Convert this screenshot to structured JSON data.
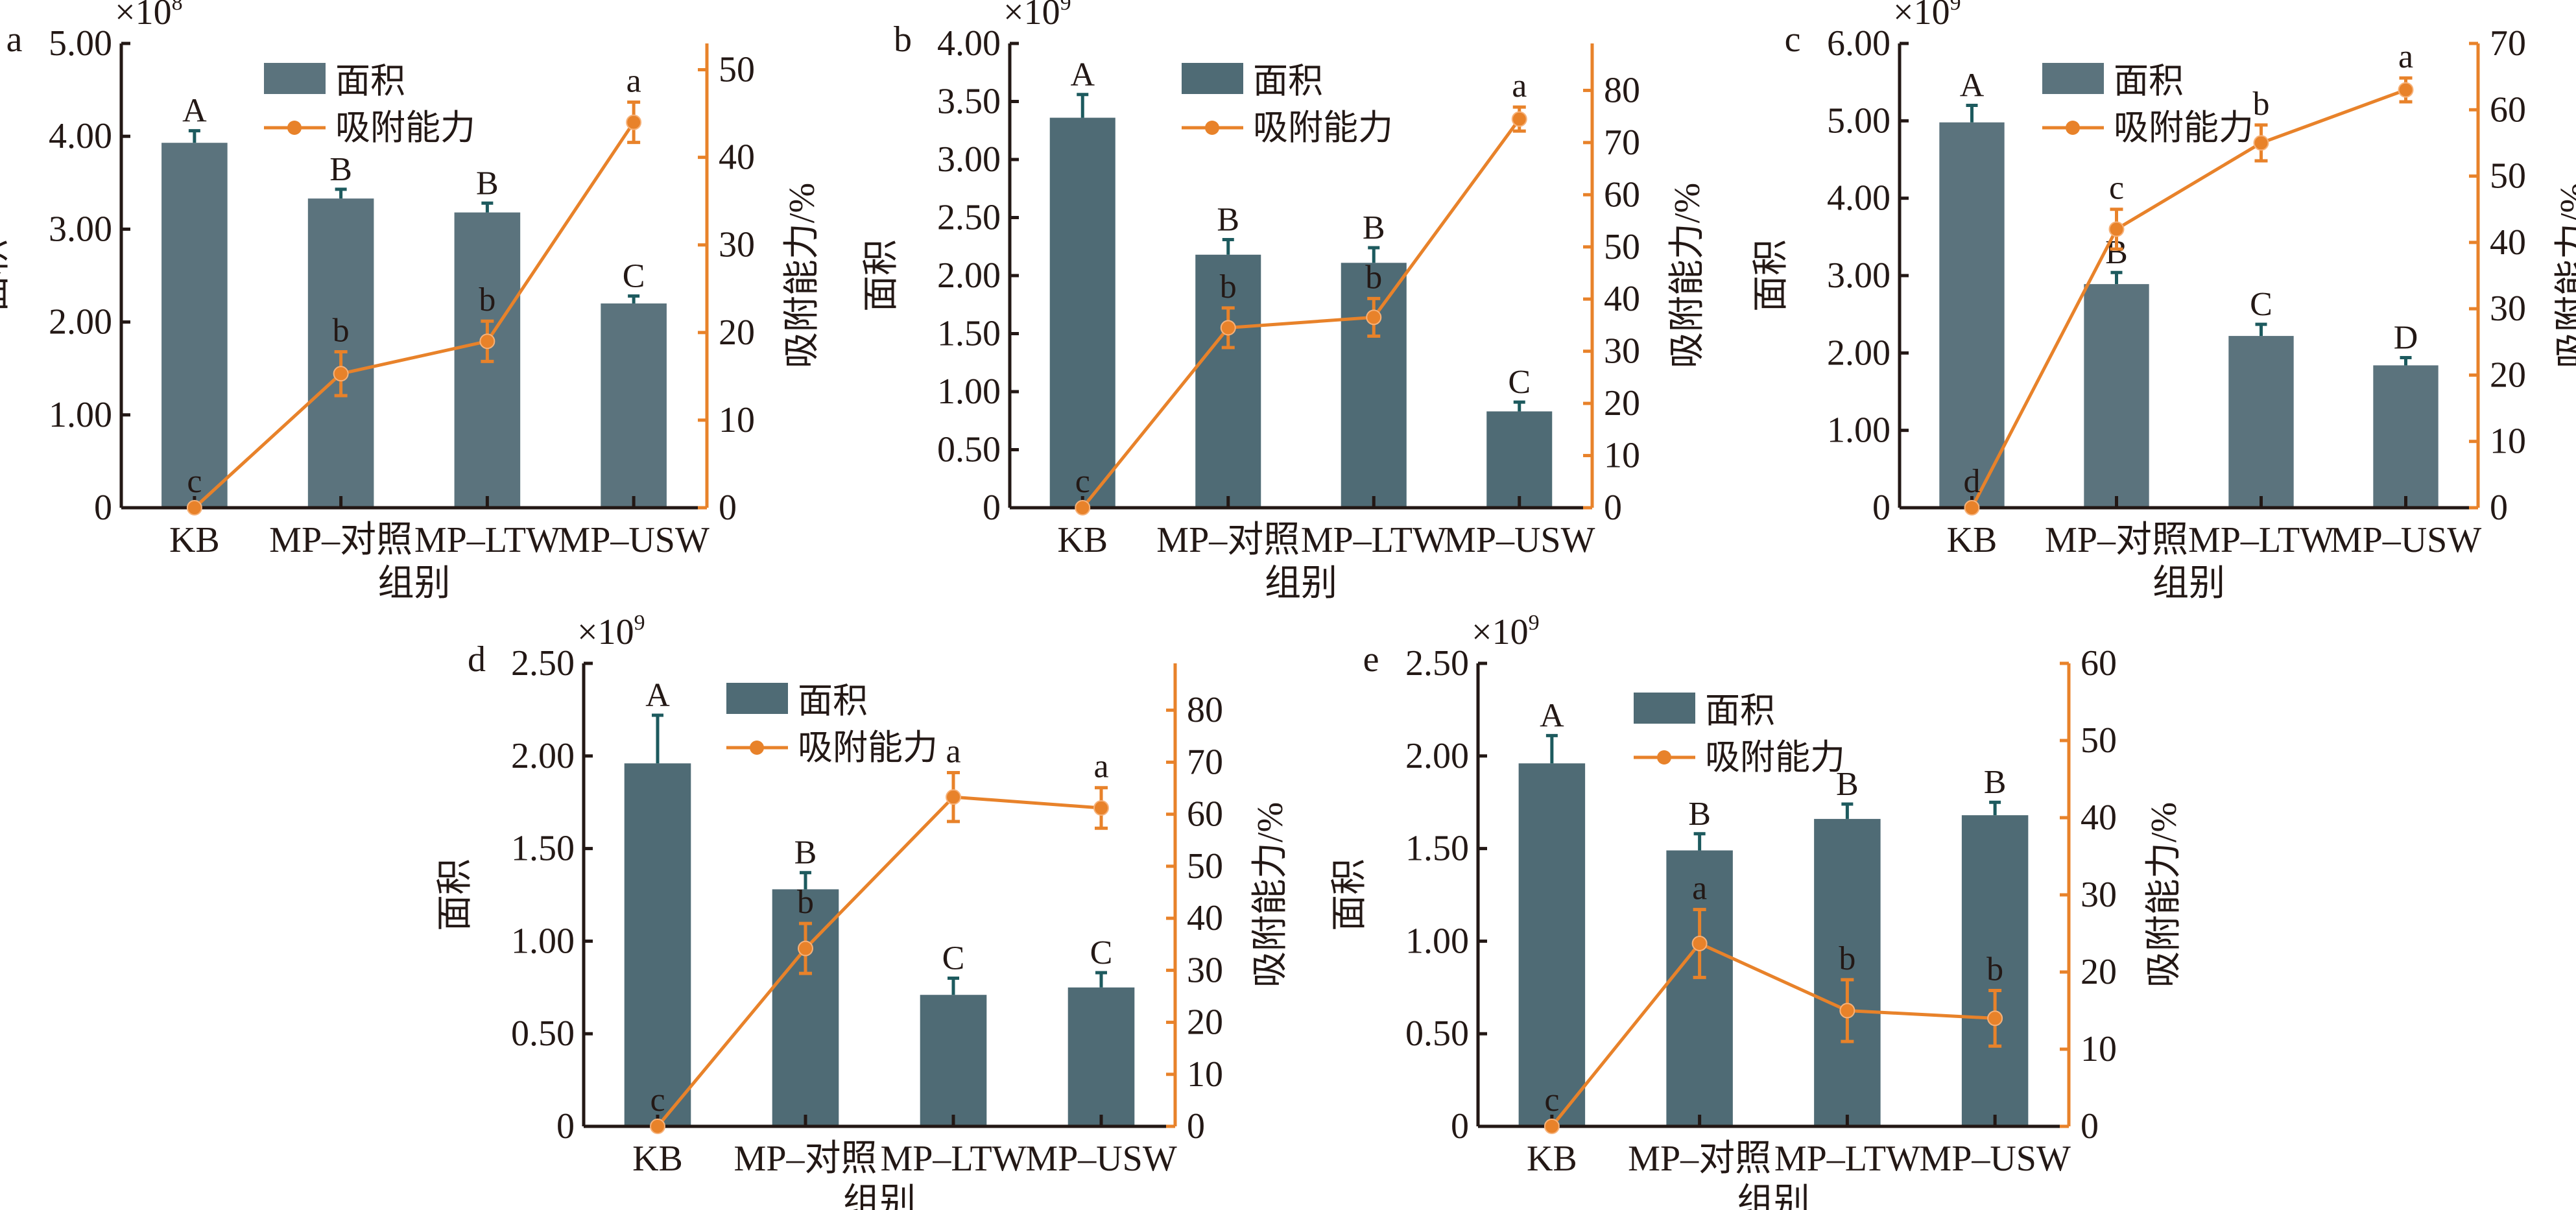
{
  "colors": {
    "bar": "#4f6b75",
    "bar_light": "#5b737d",
    "line": "#e8822a",
    "bar_error": "#1d5a5e",
    "axis": "#231815"
  },
  "legend": {
    "bar": "面积",
    "line": "吸附能力"
  },
  "chart_data": [
    {
      "panel": "a",
      "type": "bar+line",
      "multiplier": "×10",
      "exponent": "8",
      "categories": [
        "KB",
        "MP–对照",
        "MP–LTW",
        "MP–USW"
      ],
      "xlabel": "组别",
      "ylabel": "面积",
      "y2label": "吸附能力/%",
      "ylim": [
        0,
        5
      ],
      "y2lim": [
        0,
        53
      ],
      "yticks": [
        "0",
        "1.00",
        "2.00",
        "3.00",
        "4.00",
        "5.00"
      ],
      "y2ticks": [
        "0",
        "10",
        "20",
        "30",
        "40",
        "50"
      ],
      "series": [
        {
          "name": "面积",
          "kind": "bar",
          "values": [
            3.93,
            3.33,
            3.18,
            2.2
          ],
          "errors": [
            0.13,
            0.1,
            0.1,
            0.08
          ],
          "letters": [
            "A",
            "B",
            "B",
            "C"
          ]
        },
        {
          "name": "吸附能力",
          "kind": "line",
          "values": [
            0,
            15.3,
            19.0,
            44.0
          ],
          "errors": [
            0,
            2.5,
            2.3,
            2.3
          ],
          "letters": [
            "c",
            "b",
            "b",
            "a"
          ]
        }
      ]
    },
    {
      "panel": "b",
      "type": "bar+line",
      "multiplier": "×10",
      "exponent": "9",
      "categories": [
        "KB",
        "MP–对照",
        "MP–LTW",
        "MP–USW"
      ],
      "xlabel": "组别",
      "ylabel": "面积",
      "y2label": "吸附能力/%",
      "ylim": [
        0,
        4
      ],
      "y2lim": [
        0,
        89
      ],
      "yticks": [
        "0",
        "0.50",
        "1.00",
        "1.50",
        "2.00",
        "2.50",
        "3.00",
        "3.50",
        "4.00"
      ],
      "y2ticks": [
        "0",
        "10",
        "20",
        "30",
        "40",
        "50",
        "60",
        "70",
        "80"
      ],
      "series": [
        {
          "name": "面积",
          "kind": "bar",
          "values": [
            3.36,
            2.18,
            2.11,
            0.83
          ],
          "errors": [
            0.2,
            0.13,
            0.13,
            0.08
          ],
          "letters": [
            "A",
            "B",
            "B",
            "C"
          ]
        },
        {
          "name": "吸附能力",
          "kind": "line",
          "values": [
            0,
            34.5,
            36.5,
            74.5
          ],
          "errors": [
            0,
            3.8,
            3.6,
            2.3
          ],
          "letters": [
            "c",
            "b",
            "b",
            "a"
          ]
        }
      ]
    },
    {
      "panel": "c",
      "type": "bar+line",
      "multiplier": "×10",
      "exponent": "9",
      "categories": [
        "KB",
        "MP–对照",
        "MP–LTW",
        "MP–USW"
      ],
      "xlabel": "组别",
      "ylabel": "面积",
      "y2label": "吸附能力/%",
      "ylim": [
        0,
        6
      ],
      "y2lim": [
        0,
        70
      ],
      "yticks": [
        "0",
        "1.00",
        "2.00",
        "3.00",
        "4.00",
        "5.00",
        "6.00"
      ],
      "y2ticks": [
        "0",
        "10",
        "20",
        "30",
        "40",
        "50",
        "60",
        "70"
      ],
      "series": [
        {
          "name": "面积",
          "kind": "bar",
          "values": [
            4.98,
            2.89,
            2.22,
            1.84
          ],
          "errors": [
            0.22,
            0.15,
            0.15,
            0.1
          ],
          "letters": [
            "A",
            "B",
            "C",
            "D"
          ]
        },
        {
          "name": "吸附能力",
          "kind": "line",
          "values": [
            0,
            42.0,
            55.0,
            63.0
          ],
          "errors": [
            0,
            3.0,
            2.7,
            1.8
          ],
          "letters": [
            "d",
            "c",
            "b",
            "a"
          ]
        }
      ]
    },
    {
      "panel": "d",
      "type": "bar+line",
      "multiplier": "×10",
      "exponent": "9",
      "categories": [
        "KB",
        "MP–对照",
        "MP–LTW",
        "MP–USW"
      ],
      "xlabel": "组别",
      "ylabel": "面积",
      "y2label": "吸附能力/%",
      "ylim": [
        0,
        2.5
      ],
      "y2lim": [
        0,
        89
      ],
      "yticks": [
        "0",
        "0.50",
        "1.00",
        "1.50",
        "2.00",
        "2.50"
      ],
      "y2ticks": [
        "0",
        "10",
        "20",
        "30",
        "40",
        "50",
        "60",
        "70",
        "80"
      ],
      "series": [
        {
          "name": "面积",
          "kind": "bar",
          "values": [
            1.96,
            1.28,
            0.71,
            0.75
          ],
          "errors": [
            0.26,
            0.09,
            0.09,
            0.08
          ],
          "letters": [
            "A",
            "B",
            "C",
            "C"
          ]
        },
        {
          "name": "吸附能力",
          "kind": "line",
          "values": [
            0,
            34.2,
            63.3,
            61.2
          ],
          "errors": [
            0,
            4.8,
            4.7,
            3.9
          ],
          "letters": [
            "c",
            "b",
            "a",
            "a"
          ]
        }
      ]
    },
    {
      "panel": "e",
      "type": "bar+line",
      "multiplier": "×10",
      "exponent": "9",
      "categories": [
        "KB",
        "MP–对照",
        "MP–LTW",
        "MP–USW"
      ],
      "xlabel": "组别",
      "ylabel": "面积",
      "y2label": "吸附能力/%",
      "ylim": [
        0,
        2.5
      ],
      "y2lim": [
        0,
        60
      ],
      "yticks": [
        "0",
        "0.50",
        "1.00",
        "1.50",
        "2.00",
        "2.50"
      ],
      "y2ticks": [
        "0",
        "10",
        "20",
        "30",
        "40",
        "50",
        "60"
      ],
      "series": [
        {
          "name": "面积",
          "kind": "bar",
          "values": [
            1.96,
            1.49,
            1.66,
            1.68
          ],
          "errors": [
            0.15,
            0.09,
            0.08,
            0.07
          ],
          "letters": [
            "A",
            "B",
            "B",
            "B"
          ]
        },
        {
          "name": "吸附能力",
          "kind": "line",
          "values": [
            0,
            23.7,
            15.0,
            14.0
          ],
          "errors": [
            0,
            4.4,
            4.0,
            3.6
          ],
          "letters": [
            "c",
            "a",
            "b",
            "b"
          ]
        }
      ]
    }
  ]
}
